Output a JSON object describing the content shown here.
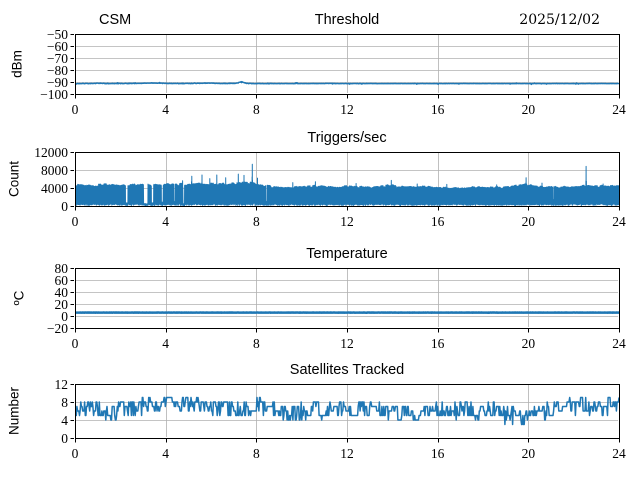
{
  "figure": {
    "background": "#ffffff",
    "line_color": "#1f77b4",
    "grid_color": "#b0b0b0",
    "text_color": "#000000"
  },
  "chart_data": [
    {
      "type": "line",
      "title": "Threshold",
      "title_left": "CSM",
      "title_right": "2025/12/02",
      "ylabel": "dBm",
      "xlim": [
        0,
        24
      ],
      "ylim": [
        -100,
        -50
      ],
      "xticks": [
        0,
        4,
        8,
        12,
        16,
        20,
        24
      ],
      "yticks": [
        -100,
        -90,
        -80,
        -70,
        -60,
        -50
      ],
      "grid": true,
      "series": {
        "kind": "noisy_line",
        "n": 1150,
        "seed": 101,
        "stroke": 1.5,
        "base_anchors": [
          [
            0,
            -91.3
          ],
          [
            2,
            -91.25
          ],
          [
            3.5,
            -91.1
          ],
          [
            4.5,
            -91.3
          ],
          [
            5.5,
            -91.15
          ],
          [
            6.5,
            -91.25
          ],
          [
            7.0,
            -91.1
          ],
          [
            8,
            -91.3
          ],
          [
            12,
            -91.3
          ],
          [
            24,
            -91.3
          ]
        ],
        "noise": 0.3,
        "noise_anchors": [
          [
            0,
            0.3
          ],
          [
            8.8,
            0.28
          ],
          [
            9.3,
            0.13
          ],
          [
            24,
            0.13
          ]
        ],
        "outlier_p": 0.03,
        "outlier_amp": 0.7,
        "bumps": [
          {
            "x": 7.35,
            "w": 0.15,
            "h": 1.4
          },
          {
            "x": 3.4,
            "w": 0.4,
            "h": 0.3
          },
          {
            "x": 5.9,
            "w": 0.4,
            "h": 0.25
          },
          {
            "x": 1.0,
            "w": 0.25,
            "h": 0.25
          },
          {
            "x": 11.2,
            "w": 0.2,
            "h": 0.15
          }
        ]
      }
    },
    {
      "type": "line",
      "title": "Triggers/sec",
      "ylabel": "Count",
      "xlim": [
        0,
        24
      ],
      "ylim": [
        0,
        12000
      ],
      "xticks": [
        0,
        4,
        8,
        12,
        16,
        20,
        24
      ],
      "yticks": [
        0,
        4000,
        8000,
        12000
      ],
      "grid": true,
      "series": {
        "kind": "band",
        "n": 5000,
        "seed": 202,
        "stroke": 1.0,
        "hold": 24,
        "hi_jit": [
          0.97,
          0.1
        ],
        "hi_fuzz": 220,
        "spike_side": 0.72,
        "hi_anchors": [
          [
            0,
            4500
          ],
          [
            0.8,
            4400
          ],
          [
            1.5,
            4600
          ],
          [
            2.0,
            4400
          ],
          [
            2.6,
            4500
          ],
          [
            3.6,
            4600
          ],
          [
            4.2,
            4600
          ],
          [
            4.8,
            4700
          ],
          [
            5.3,
            4700
          ],
          [
            5.8,
            4800
          ],
          [
            6.3,
            4700
          ],
          [
            6.8,
            4800
          ],
          [
            7.3,
            4900
          ],
          [
            7.8,
            5000
          ],
          [
            8.2,
            4500
          ],
          [
            8.7,
            4100
          ],
          [
            9.2,
            4000
          ],
          [
            10,
            4100
          ],
          [
            10.8,
            4300
          ],
          [
            11.5,
            4100
          ],
          [
            12.2,
            4200
          ],
          [
            13,
            4000
          ],
          [
            13.9,
            4400
          ],
          [
            14.5,
            4100
          ],
          [
            15.3,
            4200
          ],
          [
            16,
            4000
          ],
          [
            16.8,
            3900
          ],
          [
            17.5,
            4000
          ],
          [
            18.3,
            3900
          ],
          [
            19,
            4000
          ],
          [
            19.9,
            4600
          ],
          [
            20.5,
            4100
          ],
          [
            21.2,
            4000
          ],
          [
            22,
            4100
          ],
          [
            22.55,
            4400
          ],
          [
            23.1,
            4200
          ],
          [
            23.6,
            4300
          ],
          [
            24,
            4400
          ]
        ],
        "lo_base": 80,
        "lo_jit": 280,
        "gaps": [
          {
            "x": 2.28,
            "w": 0.1,
            "v": 700
          },
          {
            "x": 3.12,
            "w": 0.2,
            "v": 500
          },
          {
            "x": 3.42,
            "w": 0.1,
            "v": 700
          },
          {
            "x": 3.85,
            "w": 0.08,
            "v": 800
          },
          {
            "x": 4.4,
            "w": 0.06,
            "v": 900
          },
          {
            "x": 4.78,
            "w": 0.1,
            "v": 500
          },
          {
            "x": 8.45,
            "w": 0.06,
            "v": 1000
          },
          {
            "x": 21.1,
            "w": 0.05,
            "v": 1400
          }
        ],
        "spikes": [
          {
            "x": 4.75,
            "v": 5600
          },
          {
            "x": 5.15,
            "v": 6600
          },
          {
            "x": 5.6,
            "v": 6900
          },
          {
            "x": 5.95,
            "v": 6100
          },
          {
            "x": 6.25,
            "v": 6900
          },
          {
            "x": 6.65,
            "v": 6300
          },
          {
            "x": 7.2,
            "v": 7100
          },
          {
            "x": 7.45,
            "v": 6800
          },
          {
            "x": 7.82,
            "v": 9300
          },
          {
            "x": 8.05,
            "v": 6200
          },
          {
            "x": 9.6,
            "v": 5200
          },
          {
            "x": 10.6,
            "v": 5400
          },
          {
            "x": 12.4,
            "v": 5000
          },
          {
            "x": 13.95,
            "v": 5700
          },
          {
            "x": 15.1,
            "v": 4900
          },
          {
            "x": 16.4,
            "v": 4800
          },
          {
            "x": 18.6,
            "v": 4700
          },
          {
            "x": 19.9,
            "v": 6300
          },
          {
            "x": 20.6,
            "v": 5100
          },
          {
            "x": 22.55,
            "v": 8800
          },
          {
            "x": 23.3,
            "v": 4900
          }
        ]
      }
    },
    {
      "type": "line",
      "title": "Temperature",
      "ylabel": "ºC",
      "xlim": [
        0,
        24
      ],
      "ylim": [
        -20,
        80
      ],
      "xticks": [
        0,
        4,
        8,
        12,
        16,
        20,
        24
      ],
      "yticks": [
        -20,
        0,
        20,
        40,
        60,
        80
      ],
      "grid": true,
      "series": {
        "kind": "noisy_line",
        "n": 1150,
        "seed": 303,
        "stroke": 2.5,
        "base_anchors": [
          [
            0,
            5.7
          ],
          [
            24,
            5.7
          ]
        ],
        "noise": 0.18,
        "outlier_p": 0,
        "outlier_amp": 0,
        "bumps": []
      }
    },
    {
      "type": "line",
      "title": "Satellites Tracked",
      "ylabel": "Number",
      "xlim": [
        0,
        24
      ],
      "ylim": [
        0,
        12
      ],
      "xticks": [
        0,
        4,
        8,
        12,
        16,
        20,
        24
      ],
      "yticks": [
        0,
        4,
        8,
        12
      ],
      "grid": true,
      "series": {
        "kind": "walk",
        "n": 850,
        "seed": 404,
        "stroke": 1.5,
        "persist": 0.35,
        "vmin": 2,
        "mean_anchors": [
          [
            0,
            6.8
          ],
          [
            0.5,
            6.2
          ],
          [
            1,
            6.6
          ],
          [
            1.6,
            5.8
          ],
          [
            2,
            6.0
          ],
          [
            2.5,
            6.6
          ],
          [
            3,
            7.0
          ],
          [
            3.5,
            7.4
          ],
          [
            4,
            7.6
          ],
          [
            4.5,
            7.4
          ],
          [
            5,
            7.8
          ],
          [
            5.5,
            7.2
          ],
          [
            6,
            7.0
          ],
          [
            6.5,
            6.4
          ],
          [
            7,
            6.0
          ],
          [
            7.5,
            6.6
          ],
          [
            8,
            7.2
          ],
          [
            8.5,
            7.0
          ],
          [
            9,
            6.0
          ],
          [
            9.4,
            4.8
          ],
          [
            9.8,
            5.4
          ],
          [
            10.3,
            6.2
          ],
          [
            11,
            6.2
          ],
          [
            11.7,
            6.6
          ],
          [
            12.3,
            6.2
          ],
          [
            13,
            5.8
          ],
          [
            13.6,
            6.4
          ],
          [
            14.2,
            5.6
          ],
          [
            14.8,
            5.2
          ],
          [
            15.4,
            5.8
          ],
          [
            16,
            6.0
          ],
          [
            16.6,
            5.6
          ],
          [
            17.2,
            6.2
          ],
          [
            17.8,
            5.8
          ],
          [
            18.4,
            6.2
          ],
          [
            19,
            5.2
          ],
          [
            19.5,
            4.8
          ],
          [
            19.8,
            4.4
          ],
          [
            20.2,
            5.4
          ],
          [
            20.8,
            6.2
          ],
          [
            21.3,
            6.8
          ],
          [
            21.7,
            8.4
          ],
          [
            22.1,
            7.0
          ],
          [
            22.5,
            7.4
          ],
          [
            23,
            6.4
          ],
          [
            23.4,
            7.0
          ],
          [
            23.7,
            6.6
          ],
          [
            24,
            8.2
          ]
        ],
        "amp": 1.9,
        "round": true
      }
    }
  ]
}
